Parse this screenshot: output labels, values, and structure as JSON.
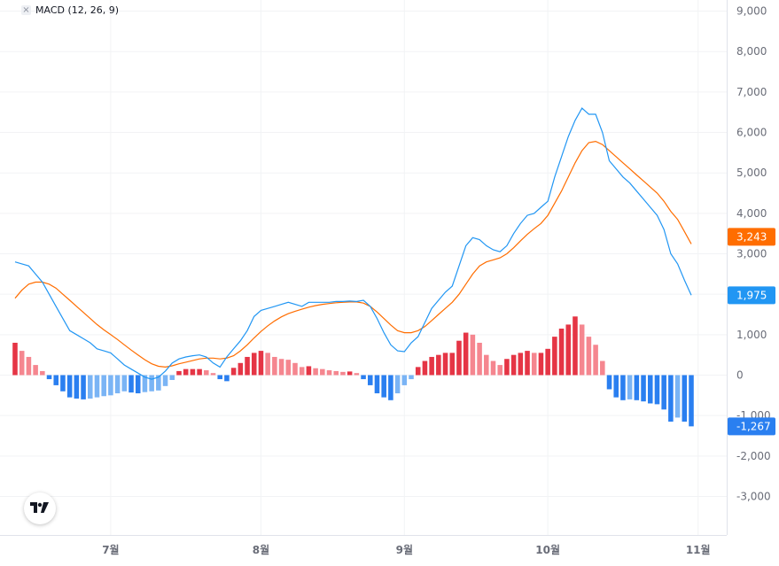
{
  "legend": {
    "close_glyph": "×",
    "label": "MACD (12, 26, 9)"
  },
  "logo": {
    "text": "TV"
  },
  "colors": {
    "macd_line": "#2196f3",
    "signal_line": "#ff6d00",
    "hist_pos_strong": "#e53545",
    "hist_pos_weak": "#f5868f",
    "hist_neg_strong": "#2a7ff0",
    "hist_neg_weak": "#7ab4f5",
    "grid": "#f2f3f5",
    "axis_text": "#6a6d78"
  },
  "chart_data": {
    "type": "line",
    "title": "MACD (12, 26, 9)",
    "ylim": [
      -4000,
      9200
    ],
    "y_ticks": [
      9000,
      8000,
      7000,
      6000,
      5000,
      4000,
      3000,
      2000,
      1000,
      0,
      -1000,
      -2000,
      -3000
    ],
    "y_tick_labels": [
      "9,000",
      "8,000",
      "7,000",
      "6,000",
      "5,000",
      "4,000",
      "3,000",
      "2,000",
      "1,000",
      "0",
      "-1,000",
      "-2,000",
      "-3,000"
    ],
    "x_range": [
      0,
      110
    ],
    "x_ticks": [
      {
        "label": "7월",
        "x": 14
      },
      {
        "label": "8월",
        "x": 36
      },
      {
        "label": "9월",
        "x": 57
      },
      {
        "label": "10월",
        "x": 78
      },
      {
        "label": "11월",
        "x": 100
      }
    ],
    "grid": true,
    "series": [
      {
        "name": "MACD",
        "values": [
          2800,
          2750,
          2700,
          2500,
          2300,
          2000,
          1700,
          1400,
          1100,
          1000,
          900,
          800,
          650,
          600,
          550,
          400,
          250,
          150,
          50,
          -50,
          -100,
          -50,
          100,
          300,
          400,
          450,
          480,
          500,
          450,
          300,
          200,
          450,
          650,
          850,
          1100,
          1450,
          1600,
          1650,
          1700,
          1750,
          1800,
          1750,
          1700,
          1800,
          1800,
          1800,
          1800,
          1820,
          1820,
          1830,
          1820,
          1850,
          1700,
          1400,
          1050,
          750,
          600,
          580,
          800,
          950,
          1300,
          1650,
          1850,
          2050,
          2200,
          2700,
          3200,
          3400,
          3350,
          3200,
          3100,
          3050,
          3200,
          3500,
          3750,
          3950,
          4000,
          4150,
          4300,
          4900,
          5400,
          5900,
          6300,
          6600,
          6450,
          6450,
          6000,
          5300,
          5100,
          4900,
          4750,
          4550,
          4350,
          4150,
          3950,
          3600,
          3000,
          2750,
          2350,
          1975
        ]
      },
      {
        "name": "Signal",
        "values": [
          1900,
          2100,
          2250,
          2300,
          2300,
          2250,
          2150,
          2000,
          1850,
          1700,
          1550,
          1400,
          1250,
          1120,
          1000,
          880,
          750,
          620,
          500,
          380,
          280,
          220,
          200,
          230,
          280,
          320,
          360,
          400,
          420,
          420,
          400,
          420,
          480,
          600,
          750,
          920,
          1080,
          1220,
          1340,
          1440,
          1520,
          1580,
          1630,
          1680,
          1720,
          1750,
          1770,
          1790,
          1800,
          1810,
          1810,
          1780,
          1700,
          1560,
          1400,
          1240,
          1100,
          1050,
          1050,
          1100,
          1200,
          1350,
          1500,
          1650,
          1800,
          2000,
          2250,
          2500,
          2700,
          2800,
          2850,
          2900,
          3000,
          3150,
          3320,
          3480,
          3620,
          3750,
          3950,
          4250,
          4550,
          4900,
          5250,
          5550,
          5750,
          5780,
          5700,
          5550,
          5400,
          5250,
          5100,
          4950,
          4800,
          4650,
          4500,
          4300,
          4050,
          3850,
          3550,
          3243
        ]
      },
      {
        "name": "Histogram",
        "values": [
          800,
          600,
          450,
          250,
          100,
          -100,
          -250,
          -400,
          -550,
          -580,
          -600,
          -580,
          -550,
          -520,
          -500,
          -450,
          -400,
          -430,
          -450,
          -420,
          -400,
          -380,
          -270,
          -120,
          100,
          150,
          150,
          150,
          120,
          50,
          -100,
          -150,
          180,
          300,
          450,
          550,
          600,
          550,
          450,
          400,
          380,
          300,
          200,
          220,
          170,
          150,
          120,
          100,
          80,
          90,
          50,
          -100,
          -250,
          -450,
          -550,
          -620,
          -450,
          -250,
          -100,
          200,
          350,
          450,
          500,
          550,
          550,
          850,
          1050,
          1000,
          800,
          500,
          350,
          250,
          400,
          500,
          550,
          600,
          550,
          550,
          650,
          950,
          1150,
          1250,
          1450,
          1250,
          950,
          750,
          350,
          -350,
          -550,
          -620,
          -600,
          -620,
          -650,
          -700,
          -720,
          -850,
          -1150,
          -1050,
          -1150,
          -1267
        ]
      }
    ],
    "last_values": [
      {
        "series": "Signal",
        "label": "3,243"
      },
      {
        "series": "MACD",
        "label": "1,975"
      },
      {
        "series": "Histogram",
        "label": "-1,267"
      }
    ]
  }
}
